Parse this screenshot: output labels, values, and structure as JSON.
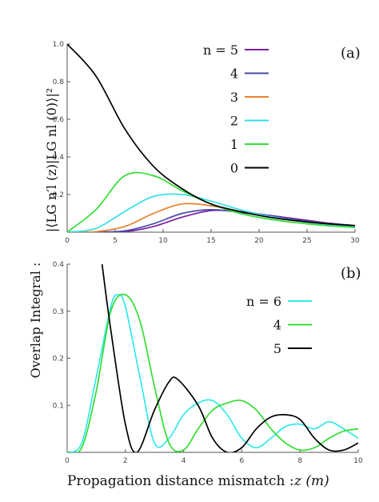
{
  "figure": {
    "xlabel": "Propagation distance mismatch :",
    "xlabel_var": "z (m)",
    "ylabel_outer": "Overlap Integral :",
    "ylabel_inner": "|⟨LG n′l (z)|LG nl (0)⟩|²"
  },
  "colors": {
    "n5": "#7b1fa2",
    "n4": "#4a4aa8",
    "n3": "#e8822a",
    "n2": "#33dde8",
    "n1": "#33dd33",
    "n0": "#000000",
    "b6": "#33e8e8",
    "b4": "#33dd33",
    "b5": "#000000"
  },
  "chart_data": [
    {
      "type": "line",
      "panel_label": "(a)",
      "xlim": [
        0,
        30
      ],
      "ylim": [
        0,
        1.0
      ],
      "xticks": [
        "0",
        "5",
        "10",
        "15",
        "20",
        "25",
        "30"
      ],
      "yticks": [
        "0.2",
        "0.4",
        "0.6",
        "0.8",
        "1.0"
      ],
      "legend_position": "top-right",
      "series": [
        {
          "name": "n = 5",
          "color_key": "n5",
          "x": [
            0,
            3,
            6,
            9,
            12,
            15,
            18,
            21,
            24,
            27,
            30
          ],
          "y": [
            0,
            0,
            0.003,
            0.03,
            0.08,
            0.115,
            0.11,
            0.09,
            0.07,
            0.05,
            0.035
          ]
        },
        {
          "name": "4",
          "color_key": "n4",
          "x": [
            0,
            3,
            6,
            9,
            12,
            15,
            18,
            21,
            24,
            27,
            30
          ],
          "y": [
            0,
            0,
            0.007,
            0.045,
            0.1,
            0.12,
            0.105,
            0.085,
            0.065,
            0.048,
            0.033
          ]
        },
        {
          "name": "3",
          "color_key": "n3",
          "x": [
            0,
            3,
            6,
            9,
            12,
            15,
            18,
            21,
            24,
            27,
            30
          ],
          "y": [
            0,
            0.003,
            0.03,
            0.1,
            0.15,
            0.14,
            0.11,
            0.08,
            0.06,
            0.045,
            0.03
          ]
        },
        {
          "name": "2",
          "color_key": "n2",
          "x": [
            0,
            3,
            6,
            9,
            12,
            15,
            18,
            21,
            24,
            27,
            30
          ],
          "y": [
            0,
            0.02,
            0.11,
            0.19,
            0.2,
            0.165,
            0.12,
            0.085,
            0.06,
            0.042,
            0.03
          ]
        },
        {
          "name": "1",
          "color_key": "n1",
          "x": [
            0,
            3,
            6,
            9,
            12,
            15,
            18,
            21,
            24,
            27,
            30
          ],
          "y": [
            0,
            0.12,
            0.3,
            0.3,
            0.22,
            0.15,
            0.1,
            0.07,
            0.05,
            0.035,
            0.025
          ]
        },
        {
          "name": "0",
          "color_key": "n0",
          "x": [
            0,
            3,
            6,
            9,
            12,
            15,
            18,
            21,
            24,
            27,
            30
          ],
          "y": [
            1,
            0.83,
            0.55,
            0.35,
            0.23,
            0.15,
            0.11,
            0.08,
            0.06,
            0.045,
            0.035
          ]
        }
      ]
    },
    {
      "type": "line",
      "panel_label": "(b)",
      "xlim": [
        0,
        10
      ],
      "ylim": [
        0,
        0.4
      ],
      "xticks": [
        "0",
        "2",
        "4",
        "6",
        "8",
        "10"
      ],
      "yticks": [
        "0.1",
        "0.2",
        "0.3",
        "0.4"
      ],
      "legend_position": "top-right",
      "series": [
        {
          "name": "n = 6",
          "color_key": "b6",
          "x": [
            0,
            0.5,
            1.0,
            1.5,
            1.75,
            2.0,
            2.5,
            3.0,
            3.5,
            4.0,
            4.5,
            5.0,
            5.5,
            6.0,
            6.5,
            7.0,
            7.5,
            8.0,
            8.5,
            9.0,
            9.5,
            10.0
          ],
          "y": [
            0,
            0.02,
            0.16,
            0.31,
            0.335,
            0.31,
            0.16,
            0.02,
            0.03,
            0.08,
            0.105,
            0.11,
            0.08,
            0.03,
            0.01,
            0.03,
            0.055,
            0.06,
            0.05,
            0.065,
            0.05,
            0.03
          ]
        },
        {
          "name": "4",
          "color_key": "b4",
          "x": [
            0,
            0.5,
            1.0,
            1.5,
            2.0,
            2.5,
            3.0,
            3.5,
            4.0,
            4.5,
            5.0,
            5.5,
            6.0,
            6.5,
            7.0,
            7.5,
            8.0,
            8.5,
            9.0,
            9.5,
            10.0
          ],
          "y": [
            0,
            0.01,
            0.13,
            0.3,
            0.335,
            0.28,
            0.14,
            0.02,
            0.005,
            0.05,
            0.09,
            0.105,
            0.11,
            0.09,
            0.05,
            0.02,
            0.005,
            0.01,
            0.03,
            0.045,
            0.05
          ]
        },
        {
          "name": "5",
          "color_key": "b5",
          "x": [
            1.2,
            1.5,
            2.0,
            2.4,
            3.0,
            3.5,
            3.8,
            4.5,
            5.0,
            5.5,
            6.0,
            6.5,
            7.0,
            7.5,
            8.0,
            8.5,
            9.0,
            9.5,
            10.0
          ],
          "y": [
            0.4,
            0.26,
            0.06,
            0.0,
            0.09,
            0.15,
            0.155,
            0.1,
            0.03,
            0.0,
            0.01,
            0.05,
            0.075,
            0.08,
            0.07,
            0.03,
            0.005,
            0.005,
            0.02
          ]
        }
      ]
    }
  ]
}
